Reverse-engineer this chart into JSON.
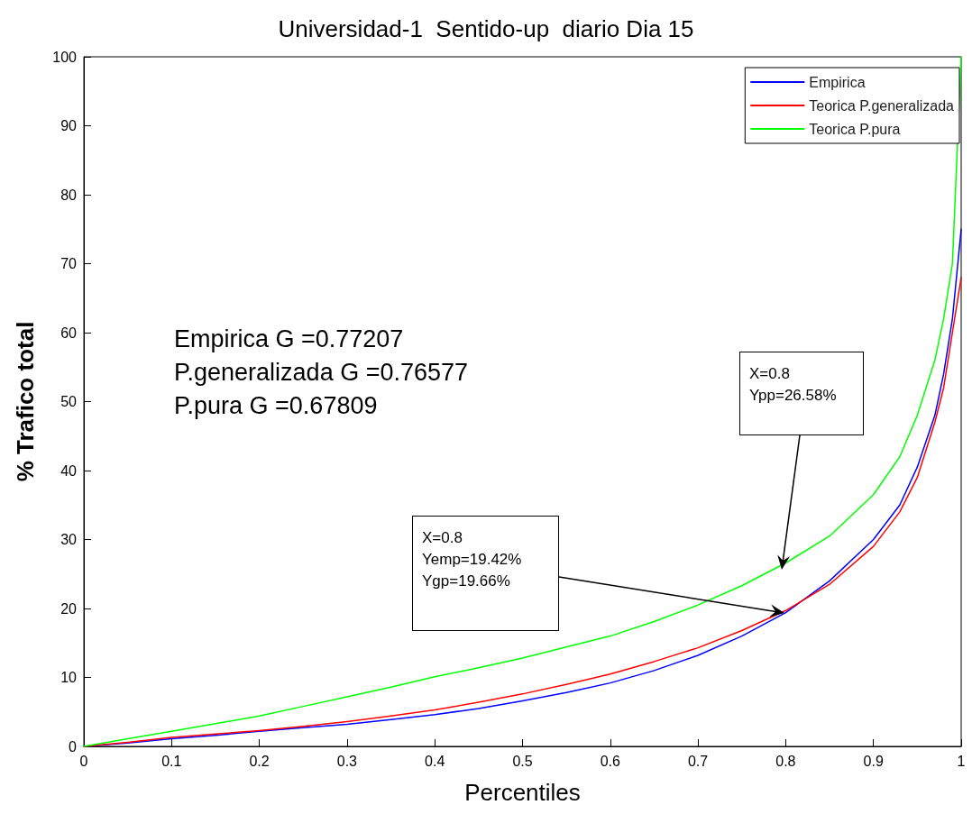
{
  "chart_data": {
    "type": "line",
    "title": "Universidad-1  Sentido-up  diario Dia 15",
    "xlabel": "Percentiles",
    "ylabel": "% Trafico total",
    "x": [
      0,
      0.05,
      0.1,
      0.15,
      0.2,
      0.25,
      0.3,
      0.35,
      0.4,
      0.45,
      0.5,
      0.55,
      0.6,
      0.65,
      0.7,
      0.75,
      0.8,
      0.85,
      0.9,
      0.93,
      0.95,
      0.97,
      0.98,
      0.99,
      1.0
    ],
    "series": [
      {
        "name": "Empirica",
        "color": "#0000ff",
        "values": [
          0,
          0.5,
          1.1,
          1.6,
          2.2,
          2.7,
          3.2,
          3.9,
          4.6,
          5.5,
          6.6,
          7.8,
          9.2,
          11,
          13.2,
          16,
          19.4,
          24,
          30,
          35,
          40.5,
          48,
          54,
          62,
          75
        ]
      },
      {
        "name": "Teorica P.generalizada",
        "color": "#ff0000",
        "values": [
          0,
          0.6,
          1.3,
          1.8,
          2.3,
          2.9,
          3.6,
          4.4,
          5.3,
          6.4,
          7.6,
          9,
          10.5,
          12.3,
          14.3,
          16.8,
          19.7,
          23.5,
          29,
          34,
          39,
          47,
          52,
          60,
          68
        ]
      },
      {
        "name": "Teorica P.pura",
        "color": "#00ff00",
        "values": [
          0,
          1.1,
          2.2,
          3.3,
          4.4,
          5.8,
          7.2,
          8.6,
          10.1,
          11.4,
          12.8,
          14.4,
          16,
          18.1,
          20.5,
          23.3,
          26.6,
          30.5,
          36.5,
          42,
          48,
          56,
          62,
          70,
          100
        ]
      }
    ],
    "xlim": [
      0,
      1
    ],
    "xticks": [
      0,
      0.1,
      0.2,
      0.3,
      0.4,
      0.5,
      0.6,
      0.7,
      0.8,
      0.9,
      1
    ],
    "ylim": [
      0,
      100
    ],
    "yticks": [
      0,
      10,
      20,
      30,
      40,
      50,
      60,
      70,
      80,
      90,
      100
    ],
    "grid": false,
    "legend": "top right",
    "marker": "none",
    "line_style": "solid",
    "annotations": [
      "Empirica G =0.77207",
      "P.generalizada G =0.76577",
      "P.pura G =0.67809",
      "X=0.8\nYpp=26.58%",
      "X=0.8\nYemp=19.42%\nYgp=19.66%"
    ]
  }
}
